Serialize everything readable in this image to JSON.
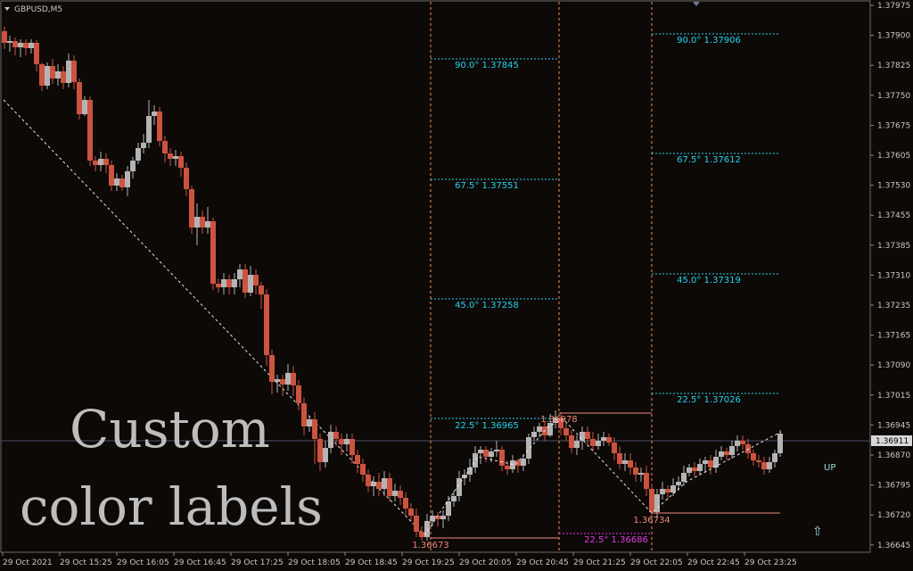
{
  "chart": {
    "symbol_title": "GBPUSD,M5",
    "current_price": "1.36911",
    "signal_label": "UP",
    "overlay_caption": [
      "Custom",
      "color labels"
    ],
    "colors": {
      "background": "#0d0907",
      "bull": "#b4b4b4",
      "bear": "#cc5340",
      "level_line": "#22d3ee",
      "level_magenta": "#e13be1",
      "vertical": "#f0905a",
      "pivot_line": "#f08a7a",
      "axis_text": "#c8c8c8"
    },
    "price_axis_labels": [
      "1.37975",
      "1.37900",
      "1.37825",
      "1.37750",
      "1.37675",
      "1.37605",
      "1.37530",
      "1.37455",
      "1.37385",
      "1.37310",
      "1.37235",
      "1.37165",
      "1.37090",
      "1.37015",
      "1.36945",
      "1.36870",
      "1.36795",
      "1.36720",
      "1.36645"
    ],
    "time_axis_labels": [
      "29 Oct 2021",
      "29 Oct 15:25",
      "29 Oct 16:05",
      "29 Oct 16:45",
      "29 Oct 17:25",
      "29 Oct 18:05",
      "29 Oct 18:45",
      "29 Oct 19:25",
      "29 Oct 20:05",
      "29 Oct 20:45",
      "29 Oct 21:25",
      "29 Oct 22:05",
      "29 Oct 22:45",
      "29 Oct 23:25"
    ],
    "level_labels_a": [
      "90.0° 1.37845",
      "67.5° 1.37551",
      "45.0° 1.37258",
      "22.5° 1.36965"
    ],
    "level_labels_b": [
      "90.0° 1.37906",
      "67.5° 1.37612",
      "45.0° 1.37319",
      "22.5° 1.37026"
    ],
    "level_label_c": "22.5° 1.36686",
    "pivot_labels": [
      "1.36673",
      "1.36978",
      "1.36734"
    ]
  }
}
